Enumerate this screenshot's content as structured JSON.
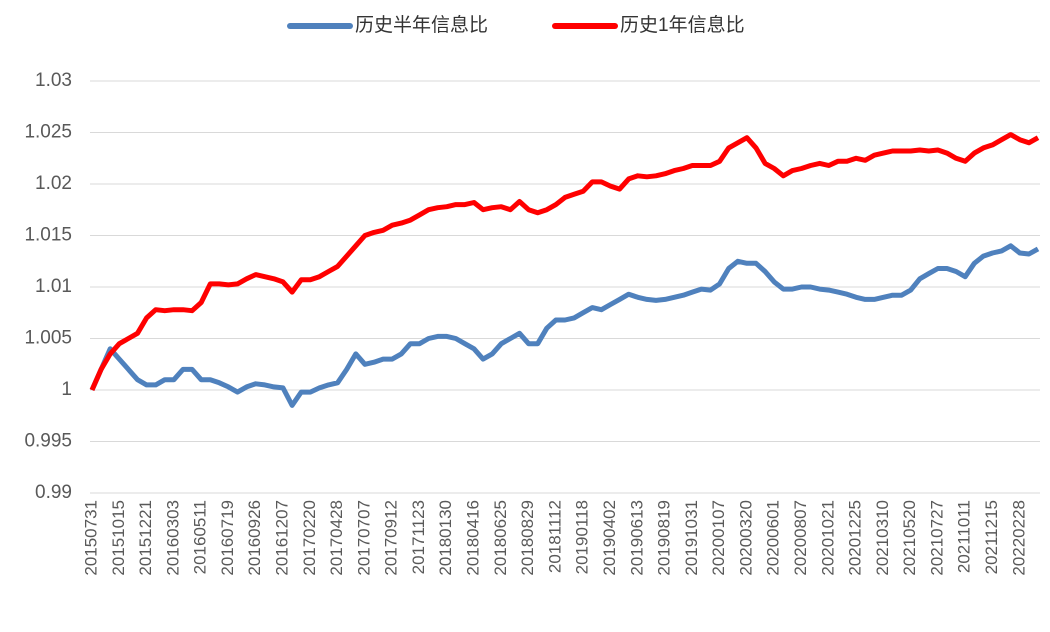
{
  "chart_data": {
    "type": "line",
    "categories": [
      "20150731",
      null,
      null,
      "20151015",
      null,
      null,
      "20151221",
      null,
      null,
      "20160303",
      null,
      null,
      "20160511",
      null,
      null,
      "20160719",
      null,
      null,
      "20160926",
      null,
      null,
      "20161207",
      null,
      null,
      "20170220",
      null,
      null,
      "20170428",
      null,
      null,
      "20170707",
      null,
      null,
      "20170912",
      null,
      null,
      "20171123",
      null,
      null,
      "20180130",
      null,
      null,
      "20180416",
      null,
      null,
      "20180625",
      null,
      null,
      "20180829",
      null,
      null,
      "20181112",
      null,
      null,
      "20190118",
      null,
      null,
      "20190402",
      null,
      null,
      "20190613",
      null,
      null,
      "20190819",
      null,
      null,
      "20191031",
      null,
      null,
      "20200107",
      null,
      null,
      "20200320",
      null,
      null,
      "20200601",
      null,
      null,
      "20200807",
      null,
      null,
      "20201021",
      null,
      null,
      "20201225",
      null,
      null,
      "20210310",
      null,
      null,
      "20210520",
      null,
      null,
      "20210727",
      null,
      null,
      "20211011",
      null,
      null,
      "20211215",
      null,
      null,
      "20220228",
      null,
      null
    ],
    "series": [
      {
        "name": "历史半年信息比",
        "color": "#4f81bd",
        "values": [
          1.0,
          1.002,
          1.004,
          1.003,
          1.002,
          1.001,
          1.0005,
          1.0005,
          1.001,
          1.001,
          1.002,
          1.002,
          1.001,
          1.001,
          1.0007,
          1.0003,
          0.9998,
          1.0003,
          1.0006,
          1.0005,
          1.0003,
          1.0002,
          0.9985,
          0.9998,
          0.9998,
          1.0002,
          1.0005,
          1.0007,
          1.002,
          1.0035,
          1.0025,
          1.0027,
          1.003,
          1.003,
          1.0035,
          1.0045,
          1.0045,
          1.005,
          1.0052,
          1.0052,
          1.005,
          1.0045,
          1.004,
          1.003,
          1.0035,
          1.0045,
          1.005,
          1.0055,
          1.0045,
          1.0045,
          1.006,
          1.0068,
          1.0068,
          1.007,
          1.0075,
          1.008,
          1.0078,
          1.0083,
          1.0088,
          1.0093,
          1.009,
          1.0088,
          1.0087,
          1.0088,
          1.009,
          1.0092,
          1.0095,
          1.0098,
          1.0097,
          1.0103,
          1.0118,
          1.0125,
          1.0123,
          1.0123,
          1.0115,
          1.0105,
          1.0098,
          1.0098,
          1.01,
          1.01,
          1.0098,
          1.0097,
          1.0095,
          1.0093,
          1.009,
          1.0088,
          1.0088,
          1.009,
          1.0092,
          1.0092,
          1.0097,
          1.0108,
          1.0113,
          1.0118,
          1.0118,
          1.0115,
          1.011,
          1.0123,
          1.013,
          1.0133,
          1.0135,
          1.014,
          1.0133,
          1.0132,
          1.0137
        ]
      },
      {
        "name": "历史1年信息比",
        "color": "#ff0000",
        "values": [
          1.0,
          1.002,
          1.0035,
          1.0045,
          1.005,
          1.0055,
          1.007,
          1.0078,
          1.0077,
          1.0078,
          1.0078,
          1.0077,
          1.0085,
          1.0103,
          1.0103,
          1.0102,
          1.0103,
          1.0108,
          1.0112,
          1.011,
          1.0108,
          1.0105,
          1.0095,
          1.0107,
          1.0107,
          1.011,
          1.0115,
          1.012,
          1.013,
          1.014,
          1.015,
          1.0153,
          1.0155,
          1.016,
          1.0162,
          1.0165,
          1.017,
          1.0175,
          1.0177,
          1.0178,
          1.018,
          1.018,
          1.0182,
          1.0175,
          1.0177,
          1.0178,
          1.0175,
          1.0183,
          1.0175,
          1.0172,
          1.0175,
          1.018,
          1.0187,
          1.019,
          1.0193,
          1.0202,
          1.0202,
          1.0198,
          1.0195,
          1.0205,
          1.0208,
          1.0207,
          1.0208,
          1.021,
          1.0213,
          1.0215,
          1.0218,
          1.0218,
          1.0218,
          1.0222,
          1.0235,
          1.024,
          1.0245,
          1.0235,
          1.022,
          1.0215,
          1.0208,
          1.0213,
          1.0215,
          1.0218,
          1.022,
          1.0218,
          1.0222,
          1.0222,
          1.0225,
          1.0223,
          1.0228,
          1.023,
          1.0232,
          1.0232,
          1.0232,
          1.0233,
          1.0232,
          1.0233,
          1.023,
          1.0225,
          1.0222,
          1.023,
          1.0235,
          1.0238,
          1.0243,
          1.0248,
          1.0243,
          1.024,
          1.0245
        ]
      }
    ],
    "ylim": [
      0.99,
      1.03
    ],
    "yticks": [
      0.99,
      0.995,
      1,
      1.005,
      1.01,
      1.015,
      1.02,
      1.025,
      1.03
    ],
    "grid": true,
    "legend": "top"
  }
}
